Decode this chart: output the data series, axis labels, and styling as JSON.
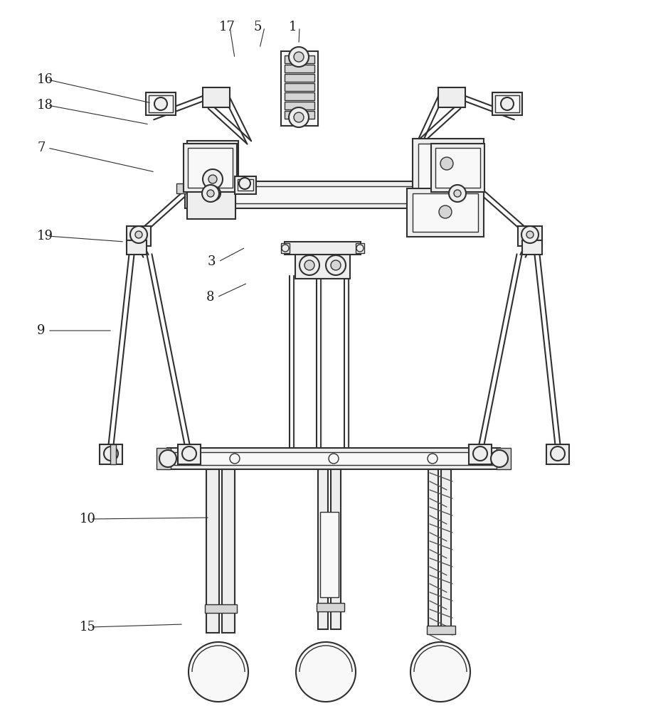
{
  "bg_color": "#ffffff",
  "line_color": "#303030",
  "line_color2": "#555555",
  "fill_white": "#f8f8f8",
  "fill_light": "#eeeeee",
  "fill_mid": "#d5d5d5",
  "fill_dark": "#aaaaaa",
  "figsize": [
    9.39,
    10.0
  ],
  "dpi": 100,
  "ann_data": [
    [
      "1",
      420,
      62,
      406,
      38
    ],
    [
      "5",
      365,
      68,
      357,
      38
    ],
    [
      "17",
      330,
      82,
      308,
      38
    ],
    [
      "16",
      213,
      145,
      52,
      112
    ],
    [
      "18",
      210,
      175,
      52,
      148
    ],
    [
      "7",
      218,
      242,
      52,
      208
    ],
    [
      "19",
      175,
      340,
      52,
      332
    ],
    [
      "9",
      158,
      465,
      52,
      465
    ],
    [
      "3",
      345,
      348,
      292,
      368
    ],
    [
      "8",
      348,
      398,
      290,
      418
    ],
    [
      "10",
      295,
      728,
      112,
      730
    ],
    [
      "15",
      258,
      878,
      112,
      882
    ]
  ]
}
